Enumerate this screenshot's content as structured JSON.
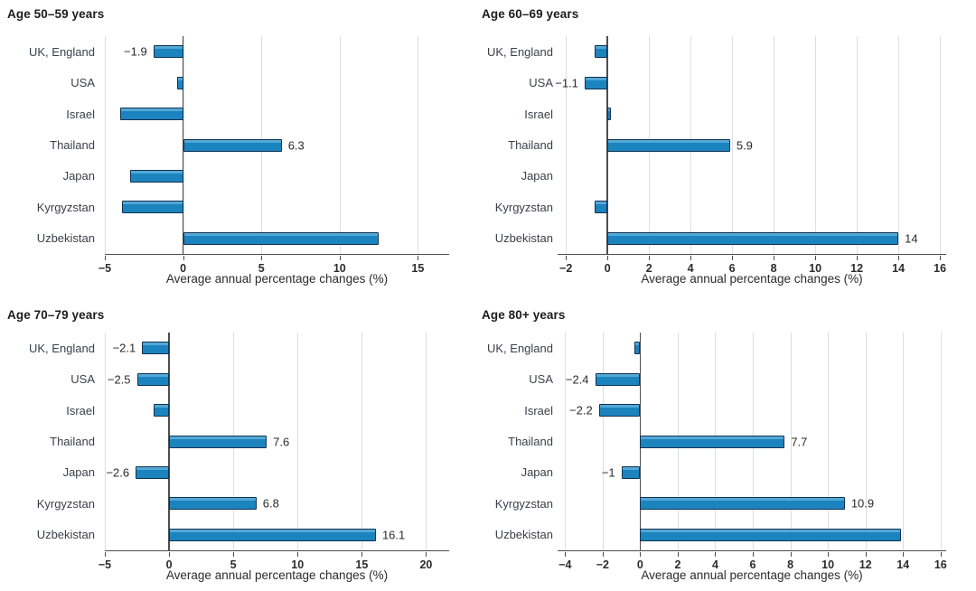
{
  "colors": {
    "bar_fill": "#1b84bf",
    "bar_highlight": "#54a8d6",
    "bar_border": "#10324f",
    "gridline": "#dadfe1",
    "axis": "#4d4d4d",
    "text": "#2b2b2b",
    "category_text": "#3a414b",
    "title_text": "#1c1c1c"
  },
  "chart_data": [
    {
      "type": "bar",
      "orientation": "horizontal",
      "title": "Age 50–59 years",
      "xlabel": "Average annual percentage changes (%)",
      "categories": [
        "UK, England",
        "USA",
        "Israel",
        "Thailand",
        "Japan",
        "Kyrgyzstan",
        "Uzbekistan"
      ],
      "values": [
        -1.9,
        -0.4,
        -4.0,
        6.3,
        -3.4,
        -3.9,
        12.5
      ],
      "value_labels": [
        "−1.9",
        null,
        null,
        "6.3",
        null,
        null,
        null
      ],
      "xticks": [
        -5,
        0,
        5,
        10,
        15
      ],
      "xlim": [
        -5,
        17
      ],
      "grid": true,
      "legend": false
    },
    {
      "type": "bar",
      "orientation": "horizontal",
      "title": "Age 60–69 years",
      "xlabel": "Average annual percentage changes (%)",
      "categories": [
        "UK, England",
        "USA",
        "Israel",
        "Thailand",
        "Japan",
        "Kyrgyzstan",
        "Uzbekistan"
      ],
      "values": [
        -0.6,
        -1.1,
        0.15,
        5.9,
        0,
        -0.6,
        14
      ],
      "value_labels": [
        null,
        "−1.1",
        null,
        "5.9",
        null,
        null,
        "14"
      ],
      "xticks": [
        -2,
        0,
        2,
        4,
        6,
        8,
        10,
        12,
        14,
        16
      ],
      "xlim": [
        -2.4,
        16.3
      ],
      "grid": true,
      "legend": false
    },
    {
      "type": "bar",
      "orientation": "horizontal",
      "title": "Age 70–79 years",
      "xlabel": "Average annual percentage changes (%)",
      "categories": [
        "UK, England",
        "USA",
        "Israel",
        "Thailand",
        "Japan",
        "Kyrgyzstan",
        "Uzbekistan"
      ],
      "values": [
        -2.1,
        -2.5,
        -1.2,
        7.6,
        -2.6,
        6.8,
        16.1
      ],
      "value_labels": [
        "−2.1",
        "−2.5",
        null,
        "7.6",
        "−2.6",
        "6.8",
        "16.1"
      ],
      "xticks": [
        -5,
        0,
        5,
        10,
        15,
        20
      ],
      "xlim": [
        -5,
        21.8
      ],
      "grid": true,
      "legend": false
    },
    {
      "type": "bar",
      "orientation": "horizontal",
      "title": "Age 80+ years",
      "xlabel": "Average annual percentage changes (%)",
      "categories": [
        "UK, England",
        "USA",
        "Israel",
        "Thailand",
        "Japan",
        "Kyrgyzstan",
        "Uzbekistan"
      ],
      "values": [
        -0.3,
        -2.4,
        -2.2,
        7.7,
        -1,
        10.9,
        13.9
      ],
      "value_labels": [
        null,
        "−2.4",
        "−2.2",
        "7.7",
        "−1",
        "10.9",
        null
      ],
      "xticks": [
        -4,
        -2,
        0,
        2,
        4,
        6,
        8,
        10,
        12,
        14,
        16
      ],
      "xlim": [
        -4.4,
        16.3
      ],
      "grid": true,
      "legend": false
    }
  ]
}
